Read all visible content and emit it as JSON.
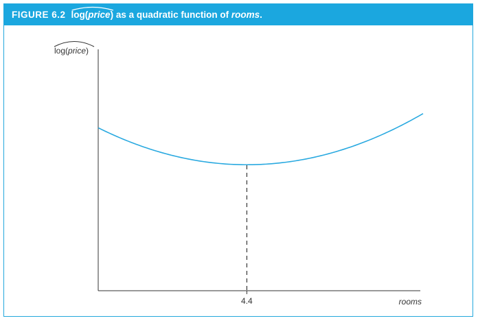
{
  "figure": {
    "number": "FIGURE 6.2",
    "title_hat_pre": "log(",
    "title_hat_var": "price",
    "title_hat_post": ")",
    "title_rest_pre": " as a quadratic function of ",
    "title_rest_var": "rooms",
    "title_rest_post": "."
  },
  "colors": {
    "banner": "#1ba7df",
    "curve": "#29a9e0",
    "axis": "#333333"
  },
  "chart_data": {
    "type": "line",
    "title": "log(price) as a quadratic function of rooms.",
    "ylabel_pre": "log(",
    "ylabel_var": "price",
    "ylabel_post": ")",
    "xlabel": "rooms",
    "xticks": [
      4.4
    ],
    "xtick_labels": [
      "4.4"
    ],
    "xlim": [
      3.0,
      6.06
    ],
    "ylim": [
      0,
      1
    ],
    "series": [
      {
        "x": [
          3.0,
          3.5,
          4.0,
          4.4,
          5.0,
          5.5,
          6.06
        ],
        "y": [
          0.675,
          0.587,
          0.536,
          0.522,
          0.561,
          0.629,
          0.734
        ]
      }
    ],
    "annotations": [
      {
        "type": "vline-dashed",
        "x": 4.4,
        "from_y": 0,
        "to_y": 0.522
      }
    ],
    "grid": false,
    "legend": "none"
  }
}
